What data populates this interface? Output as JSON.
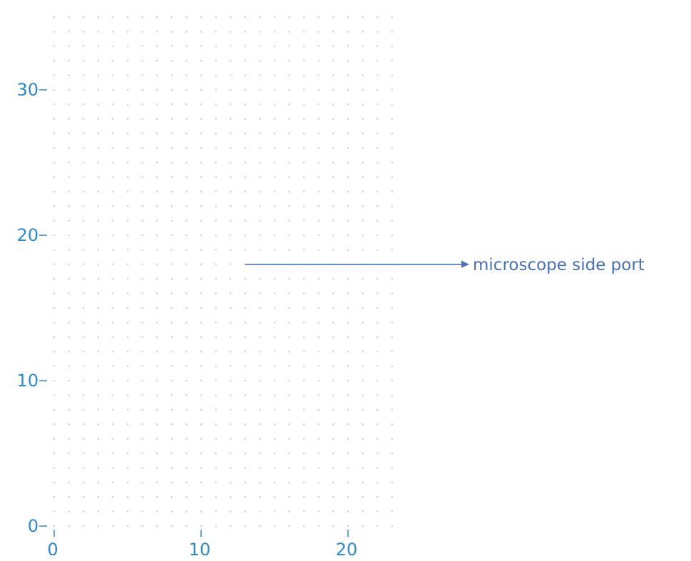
{
  "diagram": {
    "colors": {
      "axis": "#2e8ac8",
      "grid_dot": "#d6d6d6",
      "arrow": "#4a6fb5",
      "annotation_text": "#4a6fb5"
    },
    "x_axis": {
      "range": [
        0,
        23
      ],
      "ticks": [
        {
          "value": 0,
          "label": "0"
        },
        {
          "value": 10,
          "label": "10"
        },
        {
          "value": 20,
          "label": "20"
        }
      ]
    },
    "y_axis": {
      "range": [
        0,
        35
      ],
      "ticks": [
        {
          "value": 0,
          "label": "0"
        },
        {
          "value": 10,
          "label": "10"
        },
        {
          "value": 20,
          "label": "20"
        },
        {
          "value": 30,
          "label": "30"
        }
      ]
    },
    "grid": {
      "style": "dotted",
      "spacing": 1
    },
    "annotation": {
      "text": "microscope side port",
      "arrow_from": [
        13,
        18
      ],
      "direction": "right"
    }
  }
}
